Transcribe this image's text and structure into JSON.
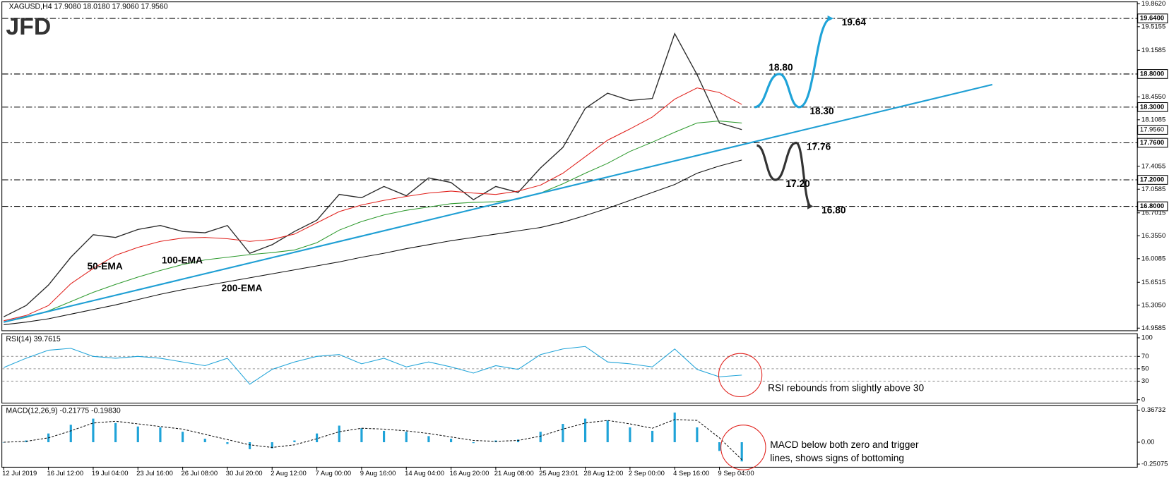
{
  "chart_data": [
    {
      "type": "line",
      "title": "XAGUSD,H4  17.9080 18.0180 17.9060 17.9560",
      "logo": "JFD",
      "ylim": [
        14.925,
        19.885
      ],
      "yticks": [
        {
          "value": 19.862,
          "label": "19.8620"
        },
        19.5155,
        19.1585,
        {
          "value": 18.455,
          "label": "18.4550"
        },
        18.1085,
        17.4055,
        17.0585,
        16.7015,
        {
          "value": 16.355,
          "label": "16.3550"
        },
        16.0085,
        15.6515,
        {
          "value": 15.305,
          "label": "15.3050"
        },
        14.9585
      ],
      "levels": [
        {
          "value": 19.64,
          "label": "19.6400"
        },
        {
          "value": 18.8,
          "label": "18.8000"
        },
        {
          "value": 18.3,
          "label": "18.3000"
        },
        {
          "value": 17.76,
          "label": "17.7600"
        },
        {
          "value": 17.2,
          "label": "17.2000"
        },
        {
          "value": 16.8,
          "label": "16.8000"
        }
      ],
      "last_price": {
        "value": 17.956,
        "label": "17.9560"
      },
      "series": [
        {
          "color": "#2a2a2a",
          "values": [
            15.13,
            15.3,
            15.61,
            16.03,
            16.37,
            16.33,
            16.45,
            16.51,
            16.42,
            16.4,
            16.51,
            16.09,
            16.22,
            16.42,
            16.59,
            16.98,
            16.93,
            17.1,
            16.96,
            17.23,
            17.16,
            16.9,
            17.1,
            17.01,
            17.38,
            17.69,
            18.28,
            18.51,
            18.4,
            18.43,
            19.41,
            18.79,
            18.06,
            17.96
          ]
        },
        {
          "name": "50-EMA",
          "color": "#e0201b",
          "values": [
            15.07,
            15.15,
            15.3,
            15.63,
            15.86,
            16.06,
            16.18,
            16.27,
            16.32,
            16.33,
            16.31,
            16.27,
            16.3,
            16.38,
            16.55,
            16.72,
            16.82,
            16.89,
            16.95,
            17.0,
            17.03,
            17.0,
            16.98,
            17.03,
            17.12,
            17.3,
            17.55,
            17.8,
            17.97,
            18.15,
            18.42,
            18.59,
            18.52,
            18.34
          ]
        },
        {
          "name": "100-EMA",
          "color": "#2e9a2e",
          "values": [
            15.05,
            15.12,
            15.22,
            15.36,
            15.5,
            15.62,
            15.73,
            15.83,
            15.92,
            15.99,
            16.03,
            16.07,
            16.1,
            16.14,
            16.25,
            16.44,
            16.57,
            16.67,
            16.74,
            16.79,
            16.84,
            16.86,
            16.87,
            16.91,
            17.0,
            17.14,
            17.3,
            17.45,
            17.63,
            17.77,
            17.92,
            18.06,
            18.09,
            18.06
          ]
        },
        {
          "name": "200-EMA",
          "color": "#111111",
          "values": [
            15.01,
            15.05,
            15.1,
            15.17,
            15.24,
            15.31,
            15.39,
            15.47,
            15.54,
            15.6,
            15.66,
            15.72,
            15.78,
            15.84,
            15.9,
            15.96,
            16.03,
            16.09,
            16.16,
            16.22,
            16.28,
            16.33,
            16.38,
            16.43,
            16.48,
            16.56,
            16.66,
            16.77,
            16.89,
            17.01,
            17.13,
            17.3,
            17.41,
            17.5
          ]
        }
      ],
      "trendline": {
        "color": "#1f9fd4",
        "x": [
          0,
          44.2
        ],
        "y": [
          15.05,
          18.64
        ]
      },
      "scenarios": [
        {
          "color": "#1fa3d8",
          "x": [
            33.57,
            34.67,
            35.57,
            37
          ],
          "y": [
            18.3,
            18.8,
            18.3,
            19.64
          ],
          "labels": [
            null,
            "18.80",
            "18.30",
            "19.64"
          ]
        },
        {
          "color": "#333333",
          "x": [
            33.67,
            34.5,
            35.43,
            36.1
          ],
          "y": [
            17.72,
            17.2,
            17.76,
            16.8
          ],
          "labels": [
            null,
            "17.20",
            "17.76",
            "16.80"
          ]
        }
      ]
    },
    {
      "type": "line",
      "title": "RSI(14) 39.7615",
      "ylim": [
        0,
        100
      ],
      "yticks": [
        100,
        70,
        50,
        30,
        0
      ],
      "grid": true,
      "series": [
        {
          "color": "#1fa3d8",
          "values": [
            52,
            67,
            80,
            83,
            70,
            67,
            70,
            67,
            61,
            55,
            67,
            25,
            49,
            61,
            70,
            73,
            58,
            67,
            53,
            61,
            53,
            43,
            55,
            49,
            73,
            82,
            86,
            61,
            58,
            53,
            82,
            49,
            37,
            39.76
          ]
        }
      ],
      "note": "RSI rebounds from slightly above 30"
    },
    {
      "type": "bar",
      "title": "MACD(12,26,9) -0.21775 -0.19830",
      "ylim": [
        -0.2735,
        0.41
      ],
      "yticks": [
        0.36732,
        {
          "value": 0,
          "label": "0.00"
        },
        -0.25075
      ],
      "categories": [
        "12 Jul 2019",
        null,
        "16 Jul 12:00",
        null,
        "19 Jul 04:00",
        null,
        "23 Jul 16:00",
        null,
        "26 Jul 08:00",
        null,
        "30 Jul 20:00",
        null,
        "2 Aug 12:00",
        null,
        "7 Aug 00:00",
        null,
        "9 Aug 16:00",
        null,
        "14 Aug 04:00",
        null,
        "16 Aug 20:00",
        null,
        "21 Aug 08:00",
        null,
        "25 Aug 23:01",
        null,
        "28 Aug 12:00",
        null,
        "2 Sep 00:00",
        null,
        "4 Sep 16:00",
        null,
        "9 Sep 04:00",
        null
      ],
      "series": [
        {
          "type": "bar",
          "color": "#1fa3d8",
          "values": [
            0.0,
            0.02,
            0.1,
            0.2,
            0.27,
            0.22,
            0.18,
            0.17,
            0.12,
            0.04,
            -0.02,
            -0.08,
            -0.07,
            0.02,
            0.1,
            0.19,
            0.16,
            0.13,
            0.12,
            0.07,
            0.04,
            -0.01,
            0.02,
            0.03,
            0.12,
            0.21,
            0.27,
            0.25,
            0.17,
            0.13,
            0.34,
            0.17,
            -0.1,
            -0.22
          ]
        },
        {
          "type": "line",
          "color": "#111111",
          "values": [
            0.0,
            0.01,
            0.05,
            0.13,
            0.22,
            0.24,
            0.21,
            0.18,
            0.15,
            0.09,
            0.03,
            -0.03,
            -0.06,
            -0.03,
            0.04,
            0.12,
            0.16,
            0.15,
            0.13,
            0.1,
            0.06,
            0.02,
            0.01,
            0.02,
            0.07,
            0.15,
            0.22,
            0.25,
            0.21,
            0.16,
            0.26,
            0.25,
            0.05,
            -0.2
          ]
        }
      ],
      "note": [
        "MACD below both zero and trigger",
        "lines, shows signs of bottoming"
      ]
    }
  ]
}
